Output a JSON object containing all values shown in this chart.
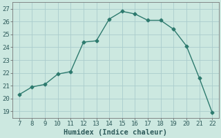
{
  "x": [
    7,
    8,
    9,
    10,
    11,
    12,
    13,
    14,
    15,
    16,
    17,
    18,
    19,
    20,
    21,
    22
  ],
  "y": [
    20.3,
    20.9,
    21.1,
    21.9,
    22.1,
    24.4,
    24.5,
    26.2,
    26.8,
    26.6,
    26.1,
    26.1,
    25.4,
    24.1,
    21.6,
    18.9
  ],
  "line_color": "#2d7a6e",
  "marker": "D",
  "marker_size": 2.5,
  "bg_color": "#cce8e0",
  "grid_color": "#aacccc",
  "xlabel": "Humidex (Indice chaleur)",
  "xlim": [
    6.5,
    22.5
  ],
  "ylim": [
    18.5,
    27.5
  ],
  "xticks": [
    7,
    8,
    9,
    10,
    11,
    12,
    13,
    14,
    15,
    16,
    17,
    18,
    19,
    20,
    21,
    22
  ],
  "yticks": [
    19,
    20,
    21,
    22,
    23,
    24,
    25,
    26,
    27
  ],
  "tick_fontsize": 6.5,
  "xlabel_fontsize": 7.5
}
